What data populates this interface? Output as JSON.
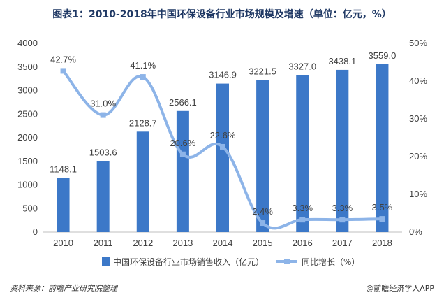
{
  "title": "图表1：2010-2018年中国环保设备行业市场规模及增速（单位：亿元，%）",
  "footer": {
    "source": "资料来源：前瞻产业研究院整理",
    "brand": "@前瞻经济学人APP"
  },
  "colors": {
    "bar": "#3c78c8",
    "line": "#8db4e8",
    "axis": "#bfbfbf"
  },
  "chart_data": {
    "type": "bar",
    "categories": [
      "2010",
      "2011",
      "2012",
      "2013",
      "2014",
      "2015",
      "2016",
      "2017",
      "2018"
    ],
    "series": [
      {
        "name": "中国环保设备行业市场销售收入（亿元）",
        "type": "bar",
        "axis": "left",
        "values": [
          1148.1,
          1503.6,
          2128.7,
          2566.1,
          3146.9,
          3221.5,
          3327.0,
          3438.1,
          3559.0
        ],
        "labels": [
          "1148.1",
          "1503.6",
          "2128.7",
          "2566.1",
          "3146.9",
          "3221.5",
          "3327.0",
          "3438.1",
          "3559.0"
        ]
      },
      {
        "name": "同比增长（%）",
        "type": "line",
        "axis": "right",
        "values": [
          42.7,
          31.0,
          41.1,
          20.6,
          22.6,
          2.4,
          3.3,
          3.3,
          3.5
        ],
        "labels": [
          "42.7%",
          "31.0%",
          "41.1%",
          "20.6%",
          "22.6%",
          "2.4%",
          "3.3%",
          "3.3%",
          "3.5%"
        ]
      }
    ],
    "ylim": [
      0,
      4000
    ],
    "y_ticks": [
      "0",
      "500",
      "1000",
      "1500",
      "2000",
      "2500",
      "3000",
      "3500",
      "4000"
    ],
    "y2lim": [
      0,
      50
    ],
    "y2_ticks": [
      "0%",
      "10%",
      "20%",
      "30%",
      "40%",
      "50%"
    ],
    "grid": false,
    "legend_position": "bottom"
  }
}
